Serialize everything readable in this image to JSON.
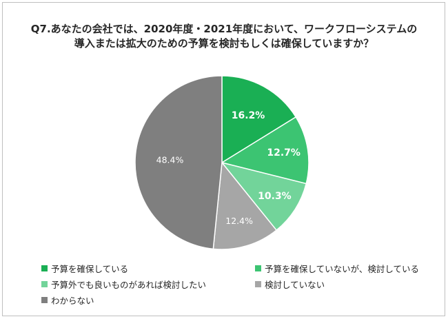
{
  "chart_data": {
    "type": "pie",
    "title_lines": [
      "Q7.あなたの会社では、2020年度・2021年度において、ワークフローシステムの",
      "導入または拡大のための予算を検討もしくは確保していますか？"
    ],
    "slices": [
      {
        "label": "予算を確保している",
        "value": 16.2,
        "display": "16.2%",
        "color": "#1aaf54",
        "label_color": "#ffffff"
      },
      {
        "label": "予算を確保していないが、検討している",
        "value": 12.7,
        "display": "12.7%",
        "color": "#3cc472",
        "label_color": "#ffffff"
      },
      {
        "label": "予算外でも良いものがあれば検討したい",
        "value": 10.3,
        "display": "10.3%",
        "color": "#72d49a",
        "label_color": "#ffffff"
      },
      {
        "label": "検討していない",
        "value": 12.4,
        "display": "12.4%",
        "color": "#a6a6a6",
        "label_color": "#ffffff"
      },
      {
        "label": "わからない",
        "value": 48.4,
        "display": "48.4%",
        "color": "#7f7f7f",
        "label_color": "#ffffff"
      }
    ],
    "start_angle_deg": 0,
    "direction": "clockwise",
    "legend_position": "bottom"
  }
}
